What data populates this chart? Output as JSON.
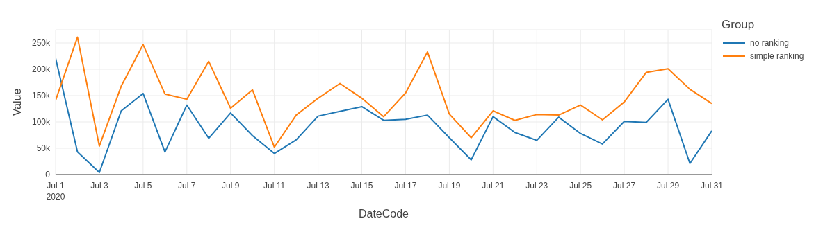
{
  "chart_data": {
    "type": "line",
    "xlabel": "DateCode",
    "ylabel": "Value",
    "legend_title": "Group",
    "x": [
      "2020-07-01",
      "2020-07-02",
      "2020-07-03",
      "2020-07-04",
      "2020-07-05",
      "2020-07-06",
      "2020-07-07",
      "2020-07-08",
      "2020-07-09",
      "2020-07-10",
      "2020-07-11",
      "2020-07-12",
      "2020-07-13",
      "2020-07-14",
      "2020-07-15",
      "2020-07-16",
      "2020-07-17",
      "2020-07-18",
      "2020-07-19",
      "2020-07-20",
      "2020-07-21",
      "2020-07-22",
      "2020-07-23",
      "2020-07-24",
      "2020-07-25",
      "2020-07-26",
      "2020-07-27",
      "2020-07-28",
      "2020-07-29",
      "2020-07-30",
      "2020-07-31"
    ],
    "series": [
      {
        "name": "no ranking",
        "color": "#1f77b4",
        "values": [
          221000,
          43000,
          4000,
          121000,
          154000,
          43000,
          132000,
          69000,
          117000,
          74000,
          40000,
          66000,
          111000,
          120000,
          129000,
          103000,
          105000,
          113000,
          70000,
          28000,
          110000,
          80000,
          65000,
          109000,
          78000,
          58000,
          101000,
          99000,
          143000,
          21000,
          83000
        ]
      },
      {
        "name": "simple ranking",
        "color": "#ff7f0e",
        "values": [
          141000,
          261000,
          54000,
          168000,
          247000,
          153000,
          143000,
          215000,
          126000,
          161000,
          52000,
          113000,
          145000,
          173000,
          145000,
          110000,
          155000,
          233000,
          115000,
          70000,
          121000,
          103000,
          114000,
          113000,
          132000,
          104000,
          138000,
          194000,
          201000,
          162000,
          135000
        ]
      }
    ],
    "xlim": [
      "2020-07-01",
      "2020-07-31"
    ],
    "xticks": [
      {
        "value": "2020-07-01",
        "label": "Jul 1\n2020"
      },
      {
        "value": "2020-07-03",
        "label": "Jul 3"
      },
      {
        "value": "2020-07-05",
        "label": "Jul 5"
      },
      {
        "value": "2020-07-07",
        "label": "Jul 7"
      },
      {
        "value": "2020-07-09",
        "label": "Jul 9"
      },
      {
        "value": "2020-07-11",
        "label": "Jul 11"
      },
      {
        "value": "2020-07-13",
        "label": "Jul 13"
      },
      {
        "value": "2020-07-15",
        "label": "Jul 15"
      },
      {
        "value": "2020-07-17",
        "label": "Jul 17"
      },
      {
        "value": "2020-07-19",
        "label": "Jul 19"
      },
      {
        "value": "2020-07-21",
        "label": "Jul 21"
      },
      {
        "value": "2020-07-23",
        "label": "Jul 23"
      },
      {
        "value": "2020-07-25",
        "label": "Jul 25"
      },
      {
        "value": "2020-07-27",
        "label": "Jul 27"
      },
      {
        "value": "2020-07-29",
        "label": "Jul 29"
      },
      {
        "value": "2020-07-31",
        "label": "Jul 31"
      }
    ],
    "ylim": [
      0,
      275000
    ],
    "yticks": [
      0,
      {
        "value": 50000,
        "label": "50k"
      },
      {
        "value": 100000,
        "label": "100k"
      },
      {
        "value": 150000,
        "label": "150k"
      },
      {
        "value": 200000,
        "label": "200k"
      },
      {
        "value": 250000,
        "label": "250k"
      }
    ],
    "grid": true,
    "legend": "top right",
    "marker": "none",
    "line_style": "solid"
  }
}
